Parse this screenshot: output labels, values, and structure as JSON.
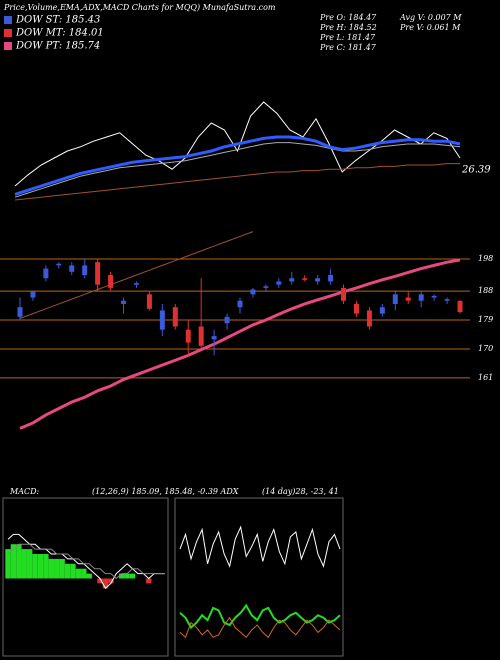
{
  "header": {
    "title": "Price,Volume,EMA,ADX,MACD Charts for MQQ) MunafaSutra.com",
    "legend": [
      {
        "text": "DOW ST: 185.43",
        "color": "#3b5bdb"
      },
      {
        "text": "DOW MT: 184.01",
        "color": "#e03131"
      },
      {
        "text": "DOW PT: 185.74",
        "color": "#e64980"
      }
    ],
    "info": [
      "Pre  O: 184.47",
      "Pre  H: 184.52",
      "Pre  L: 181.47",
      "Pre  C: 181.47"
    ],
    "volume": [
      "Avg  V: 0.007 M",
      "Pre  V: 0.061 M"
    ],
    "indicators": [
      "MACD:",
      "(12,26,9) 185.09, 185.48, -0.39 ADX",
      "(14 day)28, -23, 41"
    ]
  },
  "chart_data": [
    {
      "type": "line",
      "ylim": [
        0,
        100
      ],
      "annotation": "26.39",
      "series": [
        {
          "color": "#ffffff",
          "line_width": 1,
          "values": [
            10,
            18,
            25,
            30,
            35,
            38,
            42,
            45,
            48,
            40,
            32,
            28,
            22,
            30,
            45,
            55,
            50,
            35,
            60,
            70,
            62,
            50,
            45,
            58,
            40,
            20,
            28,
            35,
            42,
            50,
            45,
            40,
            48,
            44,
            30
          ]
        },
        {
          "color": "#aaaaaa",
          "line_width": 1,
          "values": [
            2,
            5,
            8,
            11,
            14,
            17,
            19,
            21,
            23,
            24,
            25,
            26,
            27,
            28,
            30,
            32,
            34,
            36,
            38,
            40,
            41,
            41,
            40,
            39,
            37,
            35,
            35,
            36,
            38,
            39,
            40,
            40,
            40,
            39,
            38
          ]
        },
        {
          "color": "#2f5bff",
          "line_width": 3,
          "values": [
            4,
            7,
            10,
            13,
            16,
            19,
            21,
            23,
            25,
            27,
            28,
            29,
            30,
            31,
            33,
            35,
            38,
            40,
            42,
            44,
            45,
            45,
            44,
            42,
            38,
            36,
            37,
            39,
            41,
            42,
            43,
            43,
            42,
            42,
            40
          ]
        },
        {
          "color": "#a0522d",
          "line_width": 1,
          "values": [
            0,
            1,
            2,
            3,
            4,
            5,
            6,
            7,
            8,
            9,
            10,
            11,
            12,
            13,
            14,
            15,
            16,
            17,
            18,
            19,
            20,
            20,
            21,
            21,
            22,
            22,
            23,
            23,
            24,
            24,
            25,
            25,
            25,
            26,
            26
          ]
        }
      ]
    },
    {
      "type": "candlestick",
      "ylim": [
        141.7,
        207
      ],
      "yticks": [
        198,
        188,
        179,
        170,
        161
      ],
      "grid": true,
      "up_color": "#3b5bdb",
      "down_color": "#e03131",
      "grid_color": "#b8651a",
      "open": [
        180,
        186,
        192,
        196,
        194,
        193,
        197,
        193,
        184,
        190,
        187,
        176,
        183,
        176,
        177,
        173,
        178,
        183,
        187,
        189,
        190,
        191,
        192,
        191,
        191,
        189,
        184,
        182,
        181,
        184,
        186,
        185,
        186,
        185,
        185
      ],
      "high": [
        186,
        188,
        196,
        197,
        197,
        198,
        198,
        194,
        186,
        191,
        188,
        184,
        184,
        179,
        192,
        176,
        181,
        186,
        189,
        190,
        192,
        194,
        193,
        193,
        195,
        190,
        185,
        183,
        184,
        188,
        188,
        188,
        187,
        186,
        185
      ],
      "low": [
        179,
        185,
        191,
        195,
        193,
        192,
        188,
        188,
        181,
        189,
        182,
        174,
        176,
        168,
        170,
        168,
        176,
        181,
        186,
        188,
        189,
        190,
        191,
        190,
        190,
        184,
        180,
        176,
        180,
        182,
        184,
        183,
        185,
        184,
        181
      ],
      "close": [
        183,
        188,
        195,
        196.5,
        196,
        196,
        190,
        189,
        185,
        190.5,
        182.5,
        182,
        177,
        172,
        171,
        174,
        180,
        185,
        188.5,
        189.5,
        191,
        192,
        191.5,
        192,
        193,
        185,
        181,
        177,
        183,
        187,
        185,
        187,
        186.5,
        185.5,
        181.5
      ],
      "series": [
        {
          "color": "#e64980",
          "line_width": 3,
          "values": [
            145.3,
            147,
            149.5,
            151.5,
            153.5,
            155,
            157,
            158.5,
            160.5,
            162,
            163.5,
            165,
            166.5,
            168,
            169.8,
            171.5,
            173.5,
            175.5,
            177.5,
            179,
            180.8,
            182.5,
            184,
            185.3,
            186.5,
            187.8,
            189,
            190.3,
            191.5,
            192.6,
            193.8,
            195,
            196,
            197,
            197.7
          ]
        },
        {
          "color": "#a0522d",
          "line_width": 1,
          "values": [
            179.5,
            181,
            182.5,
            184,
            185.5,
            187,
            188.5,
            190,
            191.5,
            193,
            194.5,
            196,
            197.5,
            199,
            200.5,
            202,
            203.5,
            205,
            206.5,
            null,
            null,
            null,
            null,
            null,
            null,
            null,
            null,
            null,
            null,
            null,
            null,
            null,
            null,
            null,
            null
          ]
        }
      ]
    },
    {
      "type": "macd",
      "ylim": [
        -15,
        15
      ],
      "pos_color": "#22dd22",
      "neg_color": "#e03131",
      "values": [
        6,
        7,
        7,
        6,
        6,
        5,
        5,
        5,
        4,
        4,
        4,
        3,
        3,
        2,
        2,
        1,
        0,
        -1,
        -2,
        -1,
        0,
        1,
        1,
        1,
        0,
        0,
        -1,
        0,
        0,
        0
      ],
      "series": [
        {
          "color": "#ffffff",
          "line_width": 1,
          "values": [
            8,
            9,
            9,
            8,
            7,
            7,
            6,
            6,
            5,
            5,
            5,
            4,
            4,
            3,
            3,
            2,
            1,
            0,
            -2,
            -1,
            1,
            2,
            3,
            2,
            1,
            1,
            0,
            1,
            1,
            1
          ]
        },
        {
          "color": "#888888",
          "line_width": 1,
          "values": [
            5,
            6,
            7,
            7,
            7,
            6,
            6,
            6,
            6,
            5,
            5,
            5,
            4,
            4,
            3,
            3,
            2,
            2,
            1,
            1,
            0,
            1,
            1,
            2,
            2,
            1,
            1,
            1,
            1,
            1
          ]
        }
      ]
    },
    {
      "type": "line",
      "ylim": [
        0,
        60
      ],
      "series": [
        {
          "color": "#ffffff",
          "line_width": 1,
          "values": [
            42,
            48,
            38,
            45,
            50,
            36,
            44,
            49,
            40,
            35,
            46,
            51,
            39,
            43,
            48,
            37,
            45,
            50,
            41,
            36,
            47,
            49,
            38,
            44,
            50,
            40,
            35,
            45,
            48,
            42
          ]
        },
        {
          "color": "#22dd22",
          "line_width": 2,
          "values": [
            16,
            14,
            10,
            12,
            15,
            13,
            18,
            17,
            12,
            11,
            14,
            16,
            19,
            15,
            13,
            17,
            18,
            14,
            12,
            13,
            15,
            16,
            14,
            12,
            13,
            15,
            14,
            12,
            13,
            15
          ]
        },
        {
          "color": "#d2691e",
          "line_width": 1,
          "values": [
            8,
            6,
            12,
            10,
            7,
            9,
            6,
            7,
            11,
            14,
            10,
            8,
            6,
            9,
            11,
            8,
            6,
            10,
            13,
            12,
            9,
            7,
            10,
            13,
            11,
            8,
            10,
            13,
            11,
            9
          ]
        }
      ]
    }
  ]
}
